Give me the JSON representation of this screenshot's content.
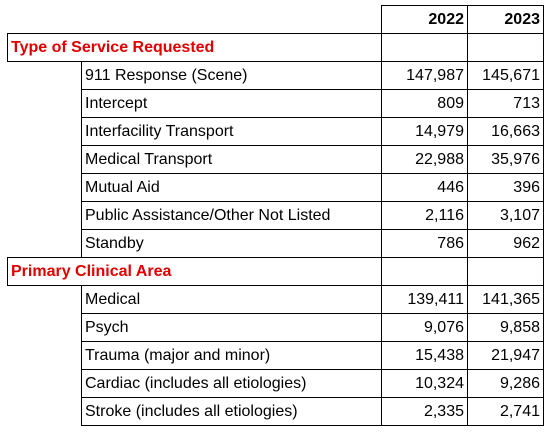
{
  "header": {
    "year_2022": "2022",
    "year_2023": "2023"
  },
  "sections": [
    {
      "title": "Type of Service Requested",
      "rows": [
        {
          "label": "911 Response (Scene)",
          "v2022": "147,987",
          "v2023": "145,671"
        },
        {
          "label": "Intercept",
          "v2022": "809",
          "v2023": "713"
        },
        {
          "label": "Interfacility Transport",
          "v2022": "14,979",
          "v2023": "16,663"
        },
        {
          "label": "Medical Transport",
          "v2022": "22,988",
          "v2023": "35,976"
        },
        {
          "label": "Mutual Aid",
          "v2022": "446",
          "v2023": "396"
        },
        {
          "label": "Public Assistance/Other Not Listed",
          "v2022": "2,116",
          "v2023": "3,107"
        },
        {
          "label": "Standby",
          "v2022": "786",
          "v2023": "962"
        }
      ]
    },
    {
      "title": "Primary Clinical Area",
      "rows": [
        {
          "label": "Medical",
          "v2022": "139,411",
          "v2023": "141,365"
        },
        {
          "label": "Psych",
          "v2022": "9,076",
          "v2023": "9,858"
        },
        {
          "label": "Trauma (major and minor)",
          "v2022": "15,438",
          "v2023": "21,947"
        },
        {
          "label": "Cardiac (includes all etiologies)",
          "v2022": "10,324",
          "v2023": "9,286"
        },
        {
          "label": "Stroke (includes all etiologies)",
          "v2022": "2,335",
          "v2023": "2,741"
        }
      ]
    }
  ],
  "colors": {
    "section_title": "#e00000",
    "border": "#000000"
  }
}
